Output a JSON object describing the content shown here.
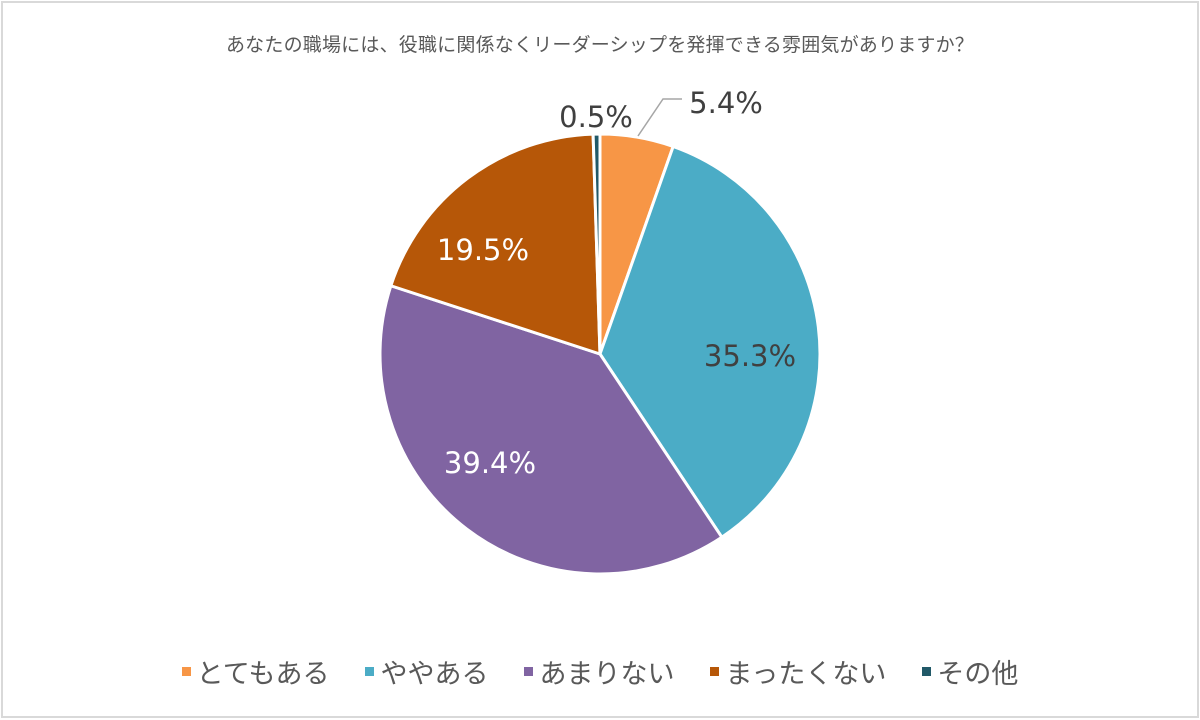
{
  "chart_data": {
    "type": "pie",
    "title": "あなたの職場には、役職に関係なくリーダーシップを発揮できる雰囲気がありますか？",
    "categories": [
      "とてもある",
      "ややある",
      "あまりない",
      "まったくない",
      "その他"
    ],
    "values": [
      5.4,
      35.3,
      39.4,
      19.5,
      0.5
    ],
    "labels": [
      "5.4%",
      "35.3%",
      "39.4%",
      "19.5%",
      "0.5%"
    ],
    "colors": [
      "#f79646",
      "#4bacc6",
      "#8064a2",
      "#b65708",
      "#215968"
    ],
    "start_angle": "12 o'clock",
    "direction": "clockwise",
    "legend_position": "bottom"
  },
  "title": "あなたの職場には、役職に関係なくリーダーシップを発揮できる雰囲気がありますか？",
  "legend": [
    {
      "label": "とてもある",
      "color": "#f79646"
    },
    {
      "label": "ややある",
      "color": "#4bacc6"
    },
    {
      "label": "あまりない",
      "color": "#8064a2"
    },
    {
      "label": "まったくない",
      "color": "#b65708"
    },
    {
      "label": "その他",
      "color": "#215968"
    }
  ]
}
